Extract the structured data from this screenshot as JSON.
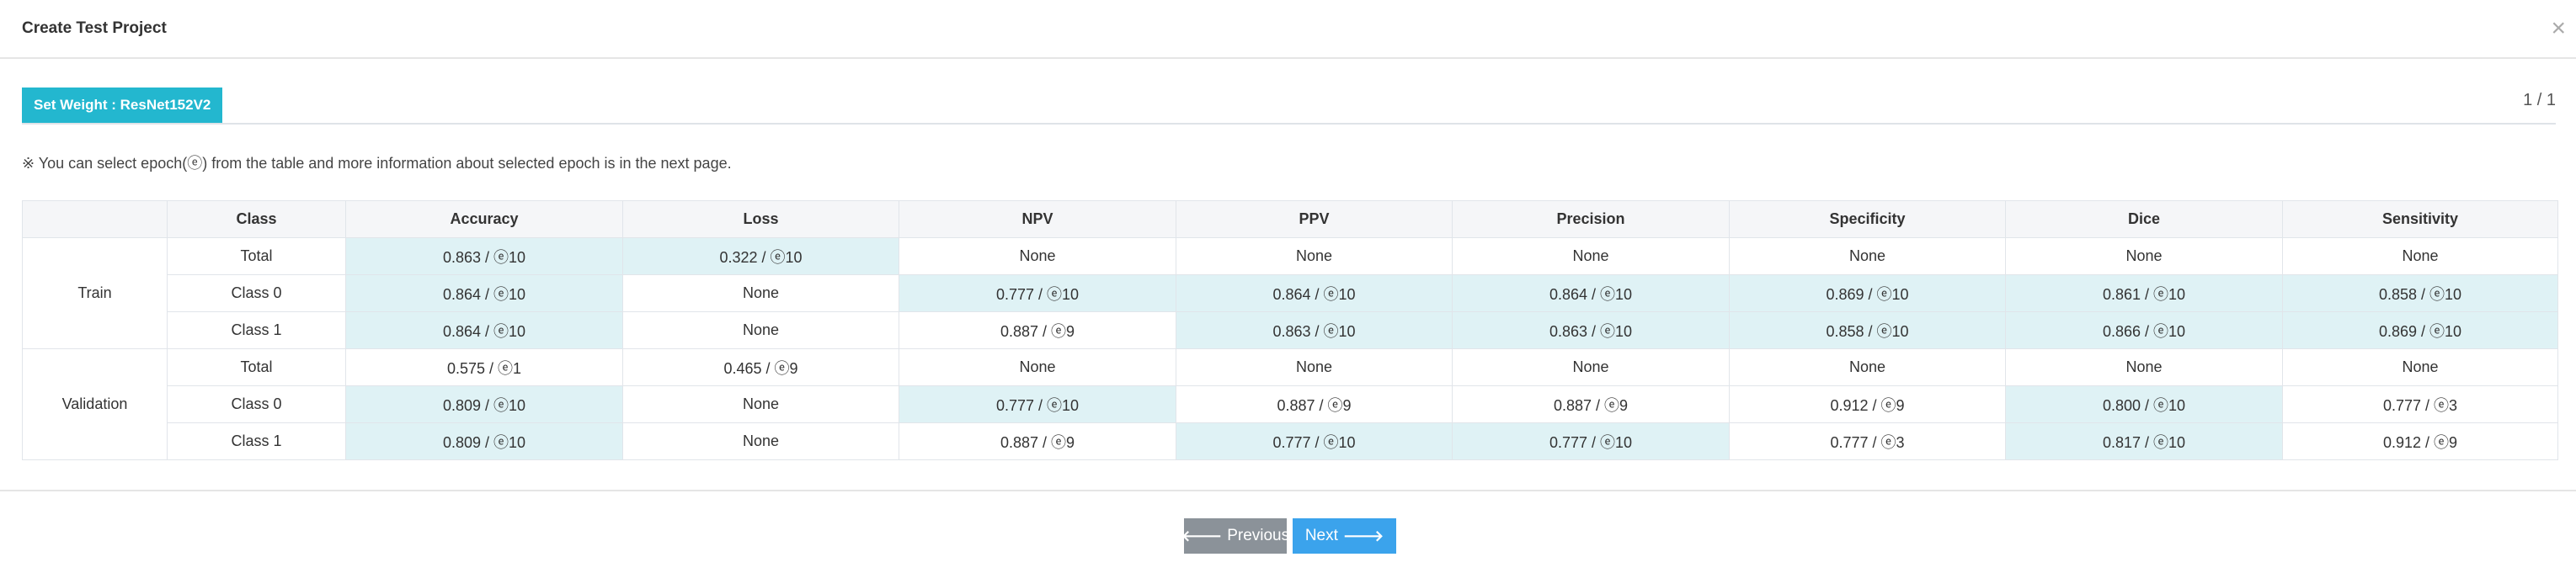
{
  "modal": {
    "title": "Create Test Project",
    "close_icon": "×"
  },
  "tab": {
    "label": "Set Weight : ResNet152V2",
    "page_indicator": "1 / 1"
  },
  "note": "※ You can select epoch(ⓔ) from the table and more information about selected epoch is in the next page.",
  "table": {
    "headers": [
      "",
      "Class",
      "Accuracy",
      "Loss",
      "NPV",
      "PPV",
      "Precision",
      "Specificity",
      "Dice",
      "Sensitivity"
    ],
    "groups": [
      {
        "name": "Train",
        "rows": [
          {
            "class": "Total",
            "cells": [
              "0.863 / ⓔ10",
              "0.322 / ⓔ10",
              "None",
              "None",
              "None",
              "None",
              "None",
              "None"
            ],
            "highlight": [
              true,
              true,
              false,
              false,
              false,
              false,
              false,
              false
            ]
          },
          {
            "class": "Class 0",
            "cells": [
              "0.864 / ⓔ10",
              "None",
              "0.777 / ⓔ10",
              "0.864 / ⓔ10",
              "0.864 / ⓔ10",
              "0.869 / ⓔ10",
              "0.861 / ⓔ10",
              "0.858 / ⓔ10"
            ],
            "highlight": [
              true,
              false,
              true,
              true,
              true,
              true,
              true,
              true
            ]
          },
          {
            "class": "Class 1",
            "cells": [
              "0.864 / ⓔ10",
              "None",
              "0.887 / ⓔ9",
              "0.863 / ⓔ10",
              "0.863 / ⓔ10",
              "0.858 / ⓔ10",
              "0.866 / ⓔ10",
              "0.869 / ⓔ10"
            ],
            "highlight": [
              true,
              false,
              false,
              true,
              true,
              true,
              true,
              true
            ]
          }
        ]
      },
      {
        "name": "Validation",
        "rows": [
          {
            "class": "Total",
            "cells": [
              "0.575 / ⓔ1",
              "0.465 / ⓔ9",
              "None",
              "None",
              "None",
              "None",
              "None",
              "None"
            ],
            "highlight": [
              false,
              false,
              false,
              false,
              false,
              false,
              false,
              false
            ]
          },
          {
            "class": "Class 0",
            "cells": [
              "0.809 / ⓔ10",
              "None",
              "0.777 / ⓔ10",
              "0.887 / ⓔ9",
              "0.887 / ⓔ9",
              "0.912 / ⓔ9",
              "0.800 / ⓔ10",
              "0.777 / ⓔ3"
            ],
            "highlight": [
              true,
              false,
              true,
              false,
              false,
              false,
              true,
              false
            ]
          },
          {
            "class": "Class 1",
            "cells": [
              "0.809 / ⓔ10",
              "None",
              "0.887 / ⓔ9",
              "0.777 / ⓔ10",
              "0.777 / ⓔ10",
              "0.777 / ⓔ3",
              "0.817 / ⓔ10",
              "0.912 / ⓔ9"
            ],
            "highlight": [
              true,
              false,
              false,
              true,
              true,
              false,
              true,
              false
            ]
          }
        ]
      }
    ]
  },
  "buttons": {
    "previous": "Previous",
    "next": "Next",
    "previous_icon": "arrow-left-icon",
    "next_icon": "arrow-right-icon"
  },
  "colors": {
    "accent": "#23b7cf",
    "highlight": "#dff2f5",
    "next_button": "#3ba3ec",
    "previous_button": "#8b9299"
  }
}
